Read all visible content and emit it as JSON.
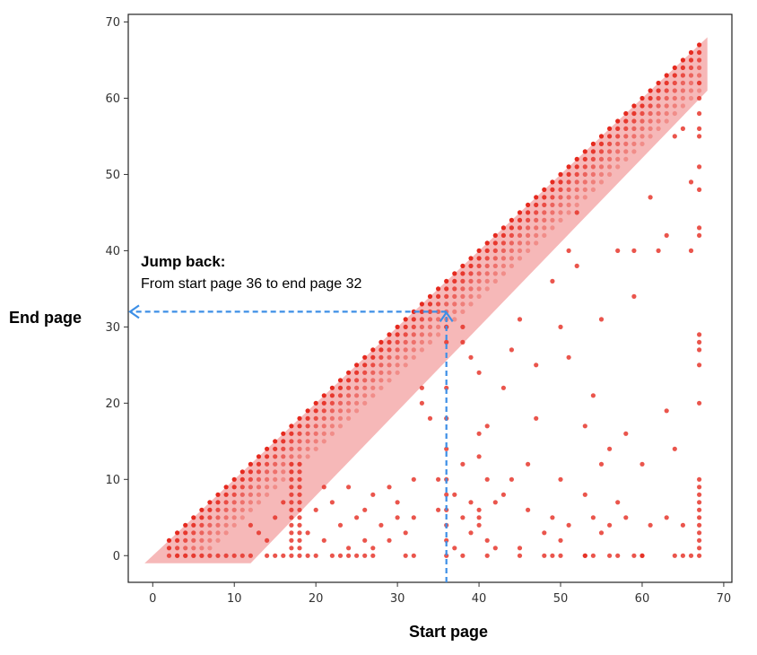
{
  "chart_data": {
    "type": "scatter",
    "xlabel": "Start page",
    "ylabel": "End page",
    "xlim": [
      -3,
      71
    ],
    "ylim": [
      -3.5,
      71
    ],
    "xticks": [
      0,
      10,
      20,
      30,
      40,
      50,
      60,
      70
    ],
    "yticks": [
      0,
      10,
      20,
      30,
      40,
      50,
      60,
      70
    ],
    "grid": false,
    "point_color": "#e52a1f",
    "band_color": "#f4a6a6",
    "arrow_color": "#3d8fe6",
    "band": {
      "x_start": 0,
      "x_end": 68,
      "upper_offset": 0,
      "lower_offset": -7,
      "y_min": -1
    },
    "diagonal": {
      "x_start": 2,
      "x_end": 67,
      "offsets": [
        0,
        -1,
        -2,
        -3,
        -4,
        -5,
        -6
      ],
      "alpha": [
        1.0,
        0.9,
        0.75,
        0.6,
        0.5,
        0.4,
        0.3
      ]
    },
    "series": [
      {
        "points": [
          [
            3,
            0
          ],
          [
            4,
            0
          ],
          [
            5,
            0
          ],
          [
            6,
            0
          ],
          [
            7,
            0
          ],
          [
            8,
            0
          ],
          [
            9,
            0
          ],
          [
            10,
            0
          ],
          [
            11,
            0
          ],
          [
            12,
            0
          ],
          [
            14,
            0
          ],
          [
            15,
            0
          ],
          [
            16,
            0
          ],
          [
            17,
            0
          ],
          [
            18,
            0
          ],
          [
            19,
            0
          ],
          [
            20,
            0
          ],
          [
            22,
            0
          ],
          [
            23,
            0
          ],
          [
            24,
            0
          ],
          [
            25,
            0
          ],
          [
            26,
            0
          ],
          [
            27,
            0
          ],
          [
            31,
            0
          ],
          [
            32,
            0
          ],
          [
            38,
            0
          ],
          [
            41,
            0
          ],
          [
            45,
            0
          ],
          [
            48,
            0
          ],
          [
            49,
            0
          ],
          [
            50,
            0
          ],
          [
            53,
            0
          ],
          [
            54,
            0
          ],
          [
            56,
            0
          ],
          [
            57,
            0
          ],
          [
            59,
            0
          ],
          [
            60,
            0
          ],
          [
            64,
            0
          ],
          [
            65,
            0
          ],
          [
            66,
            0
          ],
          [
            67,
            0
          ],
          [
            17,
            1
          ],
          [
            17,
            2
          ],
          [
            17,
            3
          ],
          [
            17,
            4
          ],
          [
            17,
            5
          ],
          [
            17,
            6
          ],
          [
            17,
            7
          ],
          [
            17,
            8
          ],
          [
            17,
            9
          ],
          [
            17,
            10
          ],
          [
            17,
            11
          ],
          [
            17,
            12
          ],
          [
            18,
            1
          ],
          [
            18,
            2
          ],
          [
            18,
            3
          ],
          [
            18,
            4
          ],
          [
            18,
            5
          ],
          [
            18,
            6
          ],
          [
            18,
            7
          ],
          [
            18,
            8
          ],
          [
            18,
            9
          ],
          [
            18,
            10
          ],
          [
            18,
            11
          ],
          [
            18,
            12
          ],
          [
            67,
            1
          ],
          [
            67,
            2
          ],
          [
            67,
            3
          ],
          [
            67,
            4
          ],
          [
            67,
            5
          ],
          [
            67,
            6
          ],
          [
            67,
            7
          ],
          [
            67,
            8
          ],
          [
            67,
            9
          ],
          [
            67,
            10
          ],
          [
            67,
            20
          ],
          [
            67,
            25
          ],
          [
            67,
            27
          ],
          [
            67,
            28
          ],
          [
            67,
            29
          ],
          [
            67,
            42
          ],
          [
            67,
            43
          ],
          [
            67,
            48
          ],
          [
            67,
            51
          ],
          [
            67,
            55
          ],
          [
            67,
            56
          ],
          [
            67,
            58
          ],
          [
            67,
            60
          ],
          [
            67,
            62
          ],
          [
            36,
            0
          ],
          [
            36,
            2
          ],
          [
            36,
            4
          ],
          [
            36,
            6
          ],
          [
            36,
            8
          ],
          [
            36,
            10
          ],
          [
            36,
            14
          ],
          [
            36,
            18
          ],
          [
            36,
            22
          ],
          [
            36,
            28
          ],
          [
            36,
            30
          ],
          [
            12,
            4
          ],
          [
            13,
            3
          ],
          [
            14,
            2
          ],
          [
            15,
            5
          ],
          [
            16,
            7
          ],
          [
            19,
            3
          ],
          [
            20,
            6
          ],
          [
            21,
            9
          ],
          [
            21,
            2
          ],
          [
            22,
            7
          ],
          [
            23,
            4
          ],
          [
            24,
            1
          ],
          [
            24,
            9
          ],
          [
            25,
            5
          ],
          [
            26,
            2
          ],
          [
            26,
            6
          ],
          [
            27,
            1
          ],
          [
            27,
            8
          ],
          [
            28,
            4
          ],
          [
            29,
            9
          ],
          [
            29,
            2
          ],
          [
            30,
            5
          ],
          [
            30,
            7
          ],
          [
            31,
            3
          ],
          [
            32,
            10
          ],
          [
            32,
            5
          ],
          [
            33,
            22
          ],
          [
            33,
            20
          ],
          [
            34,
            18
          ],
          [
            35,
            10
          ],
          [
            35,
            6
          ],
          [
            37,
            1
          ],
          [
            37,
            8
          ],
          [
            38,
            12
          ],
          [
            38,
            5
          ],
          [
            38,
            28
          ],
          [
            38,
            30
          ],
          [
            39,
            3
          ],
          [
            39,
            7
          ],
          [
            39,
            26
          ],
          [
            40,
            5
          ],
          [
            40,
            6
          ],
          [
            40,
            4
          ],
          [
            40,
            13
          ],
          [
            40,
            16
          ],
          [
            40,
            24
          ],
          [
            41,
            10
          ],
          [
            41,
            17
          ],
          [
            41,
            2
          ],
          [
            42,
            7
          ],
          [
            42,
            1
          ],
          [
            43,
            22
          ],
          [
            43,
            8
          ],
          [
            44,
            27
          ],
          [
            44,
            10
          ],
          [
            45,
            1
          ],
          [
            45,
            31
          ],
          [
            46,
            12
          ],
          [
            46,
            6
          ],
          [
            47,
            25
          ],
          [
            47,
            18
          ],
          [
            48,
            3
          ],
          [
            49,
            5
          ],
          [
            49,
            36
          ],
          [
            50,
            2
          ],
          [
            50,
            30
          ],
          [
            50,
            10
          ],
          [
            51,
            4
          ],
          [
            51,
            40
          ],
          [
            51,
            26
          ],
          [
            52,
            45
          ],
          [
            52,
            38
          ],
          [
            53,
            0
          ],
          [
            53,
            8
          ],
          [
            53,
            17
          ],
          [
            54,
            21
          ],
          [
            54,
            5
          ],
          [
            55,
            3
          ],
          [
            55,
            12
          ],
          [
            55,
            31
          ],
          [
            56,
            4
          ],
          [
            56,
            14
          ],
          [
            57,
            40
          ],
          [
            57,
            7
          ],
          [
            58,
            16
          ],
          [
            58,
            5
          ],
          [
            59,
            40
          ],
          [
            59,
            34
          ],
          [
            60,
            0
          ],
          [
            60,
            12
          ],
          [
            61,
            47
          ],
          [
            61,
            4
          ],
          [
            62,
            40
          ],
          [
            63,
            19
          ],
          [
            63,
            42
          ],
          [
            63,
            5
          ],
          [
            64,
            14
          ],
          [
            64,
            55
          ],
          [
            65,
            56
          ],
          [
            65,
            4
          ],
          [
            66,
            40
          ],
          [
            66,
            49
          ]
        ]
      }
    ],
    "annotations": {
      "title": "Jump back:",
      "text": "From start page 36 to end page 32",
      "arrow_from": [
        36,
        32
      ],
      "arrow_to_y": 32,
      "arrow_to_x": 36
    }
  }
}
